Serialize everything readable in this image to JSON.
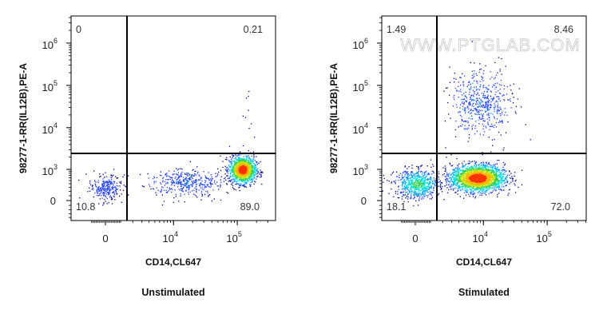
{
  "chart_data": [
    {
      "type": "scatter",
      "title": "Unstimulated",
      "xlabel": "CD14,CL647",
      "ylabel": "98277-1-RR(IL12B),PE-A",
      "x_ticks": [
        {
          "value": 0,
          "label": "0"
        },
        {
          "value": 10000,
          "base": "10",
          "exp": "4"
        },
        {
          "value": 100000,
          "base": "10",
          "exp": "5"
        }
      ],
      "y_ticks": [
        {
          "value": 0,
          "label": "0"
        },
        {
          "value": 1000,
          "base": "10",
          "exp": "3"
        },
        {
          "value": 10000,
          "base": "10",
          "exp": "4"
        },
        {
          "value": 100000,
          "base": "10",
          "exp": "5"
        },
        {
          "value": 1000000,
          "base": "10",
          "exp": "6"
        }
      ],
      "quadrant_gate": {
        "x": 1500,
        "y": 2500
      },
      "quadrants": {
        "upper_left": "0",
        "upper_right": "0.21",
        "lower_left": "10.8",
        "lower_right": "89.0"
      },
      "populations": [
        {
          "x": 0,
          "y": 300,
          "sx": 0.35,
          "sy": 0.45,
          "n": 260
        },
        {
          "x": 15000,
          "y": 450,
          "sx": 0.9,
          "sy": 0.45,
          "n": 420
        },
        {
          "x": 120000,
          "y": 1000,
          "sx": 0.3,
          "sy": 0.45,
          "n": 1300
        },
        {
          "x": 150000,
          "y": 20000,
          "sx": 0.15,
          "sy": 1.2,
          "n": 10
        }
      ],
      "watermark": ""
    },
    {
      "type": "scatter",
      "title": "Stimulated",
      "xlabel": "CD14,CL647",
      "ylabel": "98277-1-RR(IL12B),PE-A",
      "x_ticks": [
        {
          "value": 0,
          "label": "0"
        },
        {
          "value": 10000,
          "base": "10",
          "exp": "4"
        },
        {
          "value": 100000,
          "base": "10",
          "exp": "5"
        }
      ],
      "y_ticks": [
        {
          "value": 0,
          "label": "0"
        },
        {
          "value": 1000,
          "base": "10",
          "exp": "3"
        },
        {
          "value": 10000,
          "base": "10",
          "exp": "4"
        },
        {
          "value": 100000,
          "base": "10",
          "exp": "5"
        },
        {
          "value": 1000000,
          "base": "10",
          "exp": "6"
        }
      ],
      "quadrant_gate": {
        "x": 1500,
        "y": 2500
      },
      "quadrants": {
        "upper_left": "1.49",
        "upper_right": "8.46",
        "lower_left": "18.1",
        "lower_right": "72.0"
      },
      "populations": [
        {
          "x": 100,
          "y": 400,
          "sx": 0.5,
          "sy": 0.5,
          "n": 700
        },
        {
          "x": 8000,
          "y": 600,
          "sx": 0.6,
          "sy": 0.45,
          "n": 2200
        },
        {
          "x": 9000,
          "y": 40000,
          "sx": 0.7,
          "sy": 1.1,
          "n": 520
        }
      ],
      "watermark": "WWW.PTGLAB.COM"
    }
  ]
}
